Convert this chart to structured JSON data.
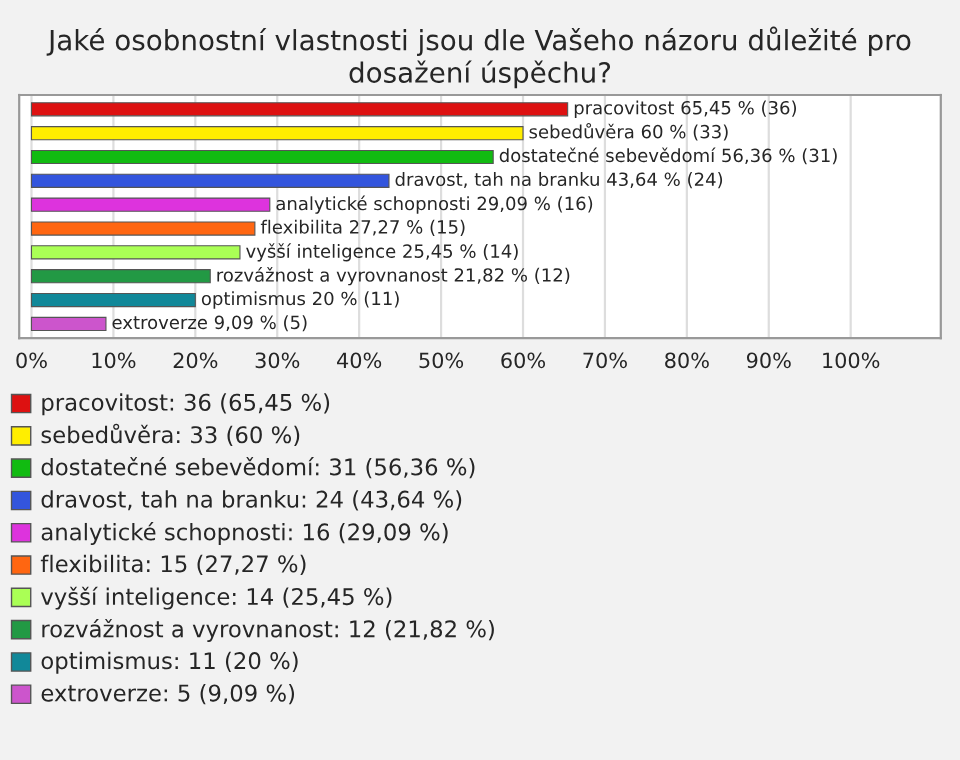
{
  "chart_data": {
    "type": "bar",
    "orientation": "horizontal",
    "title": "Jaké osobnostní vlastnosti jsou dle Vašeho názoru důležité pro dosažení úspěchu?",
    "categories": [
      null,
      null,
      null,
      null,
      null,
      null,
      null,
      null,
      null,
      null
    ],
    "values": [
      65.45,
      60,
      56.36,
      43.64,
      29.09,
      27.27,
      25.45,
      21.82,
      20,
      9.09
    ],
    "colors": [
      "#dd1111",
      "#ffee00",
      "#11bb11",
      "#3355dd",
      "#dd33dd",
      "#ff6611",
      "#aaff55",
      "#229944",
      "#118899",
      "#cc55cc"
    ],
    "value_labels": [
      "pracovitost 65,45 % (36)",
      "sebedůvěra 60 % (33)",
      "dostatečné sebevědomí 56,36 % (31)",
      "dravost, tah na branku 43,64 % (24)",
      "analytické schopnosti 29,09 % (16)",
      "flexibilita 27,27 % (15)",
      "vyšší inteligence 25,45 % (14)",
      "rozvážnost a vyrovnanost 21,82 % (12)",
      "optimismus 20 % (11)",
      "extroverze 9,09 % (5)"
    ],
    "annotations": [
      "pracovitost: 36 (65,45 %)",
      "sebedůvěra: 33 (60 %)",
      "dostatečné sebevědomí: 31 (56,36 %)",
      "dravost, tah na branku: 24 (43,64 %)",
      "analytické schopnosti: 16 (29,09 %)",
      "flexibilita: 15 (27,27 %)",
      "vyšší inteligence: 14 (25,45 %)",
      "rozvážnost a vyrovnanost: 12 (21,82 %)",
      "optimismus: 11 (20 %)",
      "extroverze: 5 (9,09 %)"
    ],
    "xlim": [
      -1.5,
      111
    ],
    "xticks": [
      {
        "value": 0,
        "label": "0%"
      },
      {
        "value": 10,
        "label": "10%"
      },
      {
        "value": 20,
        "label": "20%"
      },
      {
        "value": 30,
        "label": "30%"
      },
      {
        "value": 40,
        "label": "40%"
      },
      {
        "value": 50,
        "label": "50%"
      },
      {
        "value": 60,
        "label": "60%"
      },
      {
        "value": 70,
        "label": "70%"
      },
      {
        "value": 80,
        "label": "80%"
      },
      {
        "value": 90,
        "label": "90%"
      },
      {
        "value": 100,
        "label": "100%"
      }
    ],
    "grid": "x",
    "tick_labels": "x"
  }
}
